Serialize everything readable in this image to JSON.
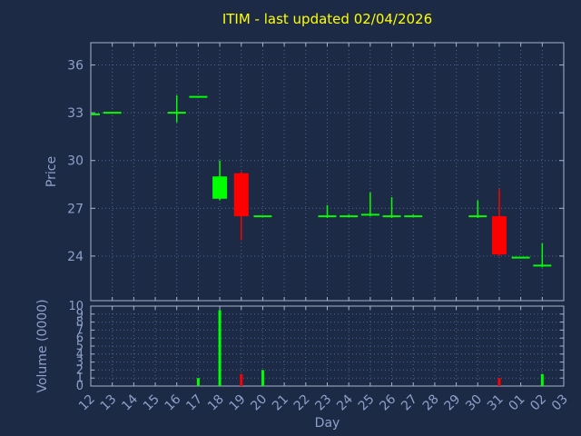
{
  "title": "ITIM - last updated 02/04/2026",
  "colors": {
    "background": "#1c2a46",
    "title": "#ffff00",
    "axis_text": "#8fa0c8",
    "grid": "#4f6494",
    "border": "#a7b4c9",
    "up": "#00ff00",
    "down": "#ff0000"
  },
  "chart_data": [
    {
      "type": "candlestick",
      "title": "ITIM - last updated 02/04/2026",
      "xlabel": "Day",
      "ylabel": "Price",
      "ylim": [
        21.2,
        37.4
      ],
      "yticks": [
        24,
        27,
        30,
        33,
        36
      ],
      "grid": true,
      "categories": [
        "12",
        "13",
        "14",
        "15",
        "16",
        "17",
        "18",
        "19",
        "20",
        "21",
        "22",
        "23",
        "24",
        "25",
        "26",
        "27",
        "28",
        "29",
        "30",
        "31",
        "01",
        "02",
        "03"
      ],
      "candles": [
        {
          "day": "12",
          "open": 32.9,
          "high": 32.9,
          "low": 32.9,
          "close": 32.9
        },
        {
          "day": "13",
          "open": 33.0,
          "high": 33.0,
          "low": 33.0,
          "close": 33.0
        },
        {
          "day": "16",
          "open": 33.0,
          "high": 34.1,
          "low": 32.4,
          "close": 33.0
        },
        {
          "day": "17",
          "open": 34.0,
          "high": 34.0,
          "low": 34.0,
          "close": 34.0
        },
        {
          "day": "18",
          "open": 27.6,
          "high": 30.0,
          "low": 27.5,
          "close": 29.0
        },
        {
          "day": "19",
          "open": 29.2,
          "high": 29.3,
          "low": 25.0,
          "close": 26.5
        },
        {
          "day": "20",
          "open": 26.5,
          "high": 26.5,
          "low": 26.5,
          "close": 26.5
        },
        {
          "day": "23",
          "open": 26.5,
          "high": 27.2,
          "low": 26.4,
          "close": 26.5
        },
        {
          "day": "24",
          "open": 26.5,
          "high": 26.6,
          "low": 26.5,
          "close": 26.5
        },
        {
          "day": "25",
          "open": 26.6,
          "high": 28.0,
          "low": 26.5,
          "close": 26.6
        },
        {
          "day": "26",
          "open": 26.5,
          "high": 27.7,
          "low": 26.4,
          "close": 26.5
        },
        {
          "day": "27",
          "open": 26.5,
          "high": 26.6,
          "low": 26.5,
          "close": 26.5
        },
        {
          "day": "30",
          "open": 26.5,
          "high": 27.5,
          "low": 26.4,
          "close": 26.5
        },
        {
          "day": "31",
          "open": 26.5,
          "high": 28.2,
          "low": 24.0,
          "close": 24.1
        },
        {
          "day": "01",
          "open": 23.9,
          "high": 23.9,
          "low": 23.9,
          "close": 23.9
        },
        {
          "day": "02",
          "open": 23.4,
          "high": 24.8,
          "low": 23.3,
          "close": 23.4
        }
      ]
    },
    {
      "type": "bar",
      "xlabel": "Day",
      "ylabel": "Volume (0000)",
      "ylim": [
        0,
        10
      ],
      "yticks": [
        0,
        1,
        2,
        3,
        4,
        5,
        6,
        7,
        8,
        9,
        10
      ],
      "grid": true,
      "bars": [
        {
          "day": "17",
          "value": 1.0,
          "direction": "up"
        },
        {
          "day": "18",
          "value": 9.5,
          "direction": "up"
        },
        {
          "day": "19",
          "value": 1.5,
          "direction": "down"
        },
        {
          "day": "20",
          "value": 2.0,
          "direction": "up"
        },
        {
          "day": "31",
          "value": 1.0,
          "direction": "down"
        },
        {
          "day": "02",
          "value": 1.5,
          "direction": "up"
        }
      ]
    }
  ]
}
